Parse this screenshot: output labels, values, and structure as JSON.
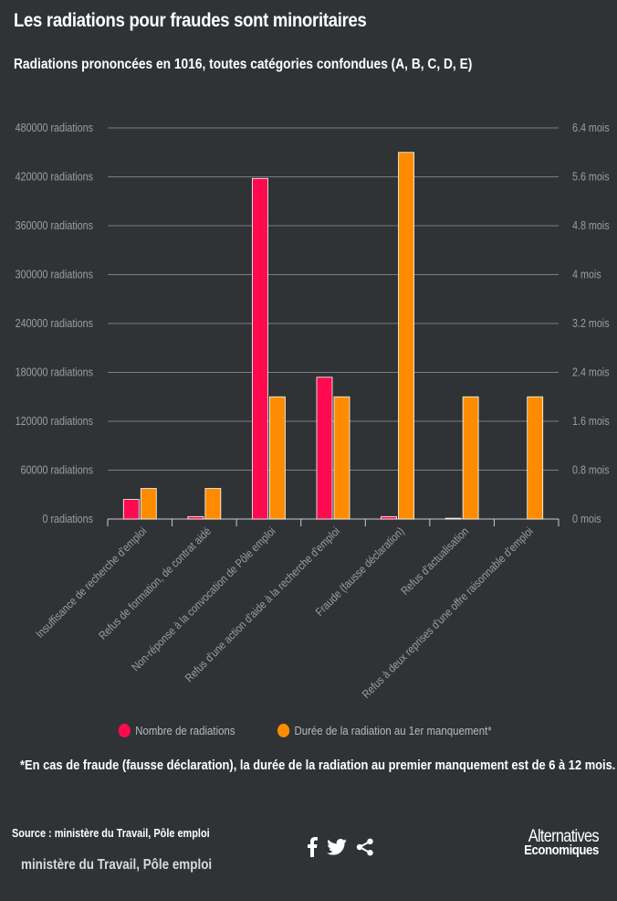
{
  "title": "Les radiations pour fraudes sont minoritaires",
  "subtitle": "Radiations prononcées en 1016, toutes catégories confondues (A, B, C, D, E)",
  "legend": {
    "series1": "Nombre de radiations",
    "series2": "Durée de la radiation au 1er manquement*"
  },
  "note": "*En cas de fraude (fausse déclaration), la durée de la radiation au premier manquement est de 6 à 12 mois.",
  "source": "Source : ministère du Travail, Pôle emploi",
  "source_line2": "ministère du Travail, Pôle emploi",
  "brand": {
    "top": "Alternatives",
    "bottom": "Economiques"
  },
  "icons": [
    "facebook-icon",
    "twitter-icon",
    "share-icon"
  ],
  "colors": {
    "background": "#2f3336",
    "series1": "#ff0a4e",
    "series2": "#ff8c00",
    "grid": "#7a7e82",
    "axis_text": "#9a9ea2"
  },
  "chart_data": {
    "type": "bar",
    "categories": [
      "Insuffisance de recherche d'emploi",
      "Refus de formation, de contrat aidé",
      "Non-réponse à la convocation de Pôle emploi",
      "Refus d'une action d'aide à la recherche d'emploi",
      "Fraude (fausse déclaration)",
      "Refus d'actualisation",
      "Refus à deux reprises d'une offre raisonnable d'emploi"
    ],
    "series": [
      {
        "name": "Nombre de radiations",
        "axis": "left",
        "values": [
          24000,
          3000,
          418000,
          174000,
          3000,
          1000,
          0
        ]
      },
      {
        "name": "Durée de la radiation au 1er manquement*",
        "axis": "right",
        "values": [
          0.5,
          0.5,
          2,
          2,
          6,
          2,
          2
        ]
      }
    ],
    "y_left": {
      "ylim": [
        0,
        480000
      ],
      "ticks": [
        "0 radiations",
        "60000 radiations",
        "120000 radiations",
        "180000 radiations",
        "240000 radiations",
        "300000 radiations",
        "360000 radiations",
        "420000 radiations",
        "480000 radiations"
      ]
    },
    "y_right": {
      "ylim": [
        0,
        6.4
      ],
      "ticks": [
        "0 mois",
        "0.8 mois",
        "1.6 mois",
        "2.4 mois",
        "3.2 mois",
        "4 mois",
        "4.8 mois",
        "5.6 mois",
        "6.4 mois"
      ]
    },
    "grid": true,
    "legend_position": "bottom"
  }
}
